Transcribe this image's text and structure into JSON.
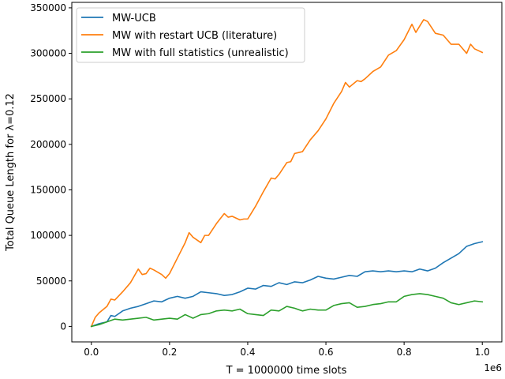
{
  "chart_data": {
    "type": "line",
    "title": "",
    "xlabel": "T = 1000000 time slots",
    "ylabel": "Total Queue Length for λ=0.12",
    "x_offset_label": "1e6",
    "xlim": [
      -0.05,
      1.05
    ],
    "ylim": [
      -17000,
      356000
    ],
    "x_ticks": [
      0.0,
      0.2,
      0.4,
      0.6,
      0.8,
      1.0
    ],
    "x_tick_labels": [
      "0.0",
      "0.2",
      "0.4",
      "0.6",
      "0.8",
      "1.0"
    ],
    "y_ticks": [
      0,
      50000,
      100000,
      150000,
      200000,
      250000,
      300000,
      350000
    ],
    "y_tick_labels": [
      "0",
      "50000",
      "100000",
      "150000",
      "200000",
      "250000",
      "300000",
      "350000"
    ],
    "grid": false,
    "legend_position": "top-left",
    "series": [
      {
        "name": "MW-UCB",
        "color": "#1f77b4",
        "x": [
          0.0,
          0.02,
          0.04,
          0.05,
          0.06,
          0.08,
          0.1,
          0.12,
          0.14,
          0.16,
          0.18,
          0.2,
          0.22,
          0.24,
          0.26,
          0.28,
          0.3,
          0.32,
          0.34,
          0.36,
          0.38,
          0.4,
          0.42,
          0.44,
          0.46,
          0.48,
          0.5,
          0.52,
          0.54,
          0.56,
          0.58,
          0.6,
          0.62,
          0.64,
          0.66,
          0.68,
          0.7,
          0.72,
          0.74,
          0.76,
          0.78,
          0.8,
          0.82,
          0.84,
          0.86,
          0.88,
          0.9,
          0.92,
          0.94,
          0.96,
          0.98,
          1.0
        ],
        "y": [
          0,
          3000,
          5000,
          12000,
          11000,
          17000,
          20000,
          22000,
          25000,
          28000,
          27000,
          31000,
          33000,
          31000,
          33000,
          38000,
          37000,
          36000,
          34000,
          35000,
          38000,
          42000,
          41000,
          45000,
          44000,
          48000,
          46000,
          49000,
          48000,
          51000,
          55000,
          53000,
          52000,
          54000,
          56000,
          55000,
          60000,
          61000,
          60000,
          61000,
          60000,
          61000,
          60000,
          63000,
          61000,
          64000,
          70000,
          75000,
          80000,
          88000,
          91000,
          93000
        ]
      },
      {
        "name": "MW with restart UCB (literature)",
        "color": "#ff7f0e",
        "x": [
          0.0,
          0.01,
          0.02,
          0.04,
          0.05,
          0.06,
          0.08,
          0.1,
          0.12,
          0.13,
          0.14,
          0.15,
          0.16,
          0.18,
          0.19,
          0.2,
          0.22,
          0.24,
          0.25,
          0.26,
          0.28,
          0.29,
          0.3,
          0.32,
          0.34,
          0.35,
          0.36,
          0.38,
          0.39,
          0.4,
          0.41,
          0.42,
          0.44,
          0.46,
          0.47,
          0.48,
          0.5,
          0.51,
          0.52,
          0.54,
          0.56,
          0.58,
          0.6,
          0.62,
          0.64,
          0.65,
          0.66,
          0.68,
          0.69,
          0.7,
          0.72,
          0.74,
          0.76,
          0.78,
          0.8,
          0.82,
          0.83,
          0.84,
          0.85,
          0.86,
          0.88,
          0.9,
          0.92,
          0.94,
          0.96,
          0.97,
          0.98,
          1.0
        ],
        "y": [
          0,
          10000,
          15000,
          22000,
          30000,
          29000,
          38000,
          48000,
          63000,
          57000,
          58000,
          64000,
          62000,
          57000,
          53000,
          58000,
          75000,
          92000,
          103000,
          98000,
          92000,
          100000,
          100000,
          113000,
          124000,
          120000,
          121000,
          117000,
          118000,
          118000,
          125000,
          132000,
          148000,
          163000,
          162000,
          167000,
          180000,
          181000,
          190000,
          192000,
          205000,
          215000,
          228000,
          245000,
          258000,
          268000,
          263000,
          270000,
          269000,
          272000,
          280000,
          285000,
          298000,
          303000,
          315000,
          332000,
          323000,
          330000,
          337000,
          335000,
          322000,
          320000,
          310000,
          310000,
          300000,
          310000,
          305000,
          301000
        ]
      },
      {
        "name": "MW with full statistics (unrealistic)",
        "color": "#2ca02c",
        "x": [
          0.0,
          0.02,
          0.04,
          0.06,
          0.08,
          0.1,
          0.12,
          0.14,
          0.16,
          0.18,
          0.2,
          0.22,
          0.24,
          0.26,
          0.28,
          0.3,
          0.32,
          0.34,
          0.36,
          0.38,
          0.4,
          0.42,
          0.44,
          0.46,
          0.48,
          0.5,
          0.52,
          0.54,
          0.56,
          0.58,
          0.6,
          0.62,
          0.64,
          0.66,
          0.68,
          0.7,
          0.72,
          0.74,
          0.76,
          0.78,
          0.8,
          0.82,
          0.84,
          0.86,
          0.88,
          0.9,
          0.92,
          0.94,
          0.96,
          0.98,
          1.0
        ],
        "y": [
          0,
          2000,
          5000,
          8000,
          7000,
          8000,
          9000,
          10000,
          7000,
          8000,
          9000,
          8000,
          13000,
          9000,
          13000,
          14000,
          17000,
          18000,
          17000,
          19000,
          14000,
          13000,
          12000,
          18000,
          17000,
          22000,
          20000,
          17000,
          19000,
          18000,
          18000,
          23000,
          25000,
          26000,
          21000,
          22000,
          24000,
          25000,
          27000,
          27000,
          33000,
          35000,
          36000,
          35000,
          33000,
          31000,
          26000,
          24000,
          26000,
          28000,
          27000
        ]
      }
    ]
  }
}
